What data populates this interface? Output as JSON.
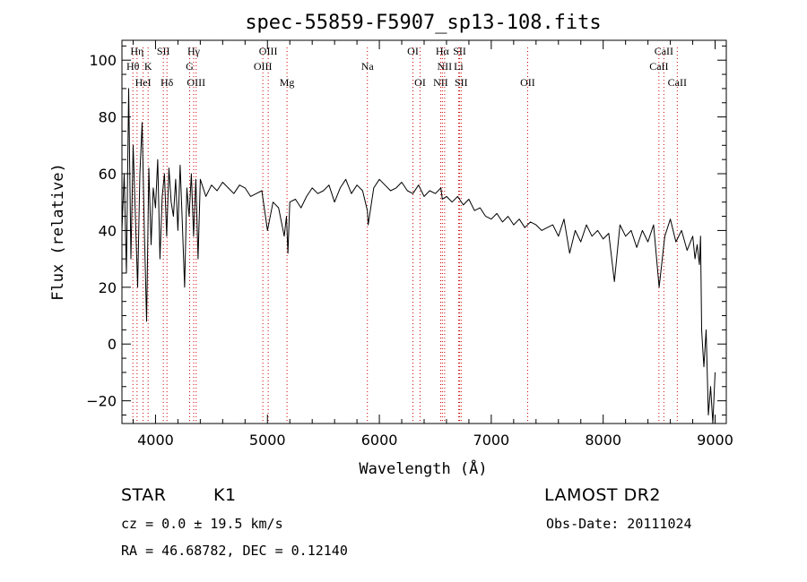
{
  "chart_data": {
    "type": "line",
    "title": "spec-55859-F5907_sp13-108.fits",
    "xlabel": "Wavelength (Å)",
    "ylabel": "Flux (relative)",
    "xlim": [
      3700,
      9100
    ],
    "ylim": [
      -28,
      107
    ],
    "x_ticks": [
      4000,
      5000,
      6000,
      7000,
      8000,
      9000
    ],
    "y_ticks": [
      -20,
      0,
      20,
      40,
      60,
      80,
      100
    ],
    "grid": false,
    "line_color": "#000000",
    "marker_color": "#cc0000",
    "series": [
      {
        "x": [
          3700,
          3720,
          3740,
          3760,
          3780,
          3800,
          3820,
          3840,
          3860,
          3880,
          3900,
          3920,
          3940,
          3960,
          3980,
          4000,
          4020,
          4040,
          4060,
          4080,
          4100,
          4120,
          4140,
          4160,
          4180,
          4200,
          4220,
          4240,
          4260,
          4280,
          4300,
          4320,
          4340,
          4360,
          4380,
          4400,
          4450,
          4500,
          4550,
          4600,
          4650,
          4700,
          4750,
          4800,
          4850,
          4900,
          4950,
          5000,
          5050,
          5100,
          5150,
          5170,
          5183,
          5200,
          5250,
          5300,
          5350,
          5400,
          5450,
          5500,
          5550,
          5600,
          5650,
          5700,
          5750,
          5800,
          5850,
          5893,
          5900,
          5950,
          6000,
          6050,
          6100,
          6150,
          6200,
          6250,
          6300,
          6350,
          6400,
          6450,
          6500,
          6550,
          6563,
          6600,
          6650,
          6700,
          6750,
          6800,
          6850,
          6900,
          6950,
          7000,
          7050,
          7100,
          7150,
          7200,
          7250,
          7300,
          7350,
          7400,
          7450,
          7500,
          7550,
          7600,
          7650,
          7700,
          7750,
          7800,
          7850,
          7900,
          7950,
          8000,
          8050,
          8100,
          8150,
          8200,
          8250,
          8300,
          8350,
          8400,
          8450,
          8500,
          8550,
          8600,
          8650,
          8700,
          8750,
          8800,
          8820,
          8840,
          8860,
          8870,
          8880,
          8890,
          8900,
          8920,
          8940,
          8960,
          8980,
          9000
        ],
        "y": [
          40,
          60,
          25,
          90,
          30,
          70,
          45,
          20,
          60,
          78,
          40,
          8,
          62,
          35,
          55,
          48,
          65,
          30,
          52,
          60,
          38,
          62,
          50,
          45,
          58,
          40,
          63,
          42,
          20,
          55,
          45,
          60,
          38,
          58,
          30,
          58,
          52,
          56,
          54,
          57,
          55,
          53,
          56,
          55,
          52,
          53,
          54,
          40,
          50,
          48,
          38,
          45,
          32,
          50,
          51,
          48,
          52,
          55,
          53,
          54,
          56,
          50,
          55,
          58,
          53,
          56,
          54,
          47,
          42,
          55,
          58,
          56,
          54,
          55,
          57,
          54,
          53,
          56,
          52,
          54,
          53,
          55,
          51,
          52,
          50,
          52,
          49,
          51,
          47,
          48,
          45,
          44,
          46,
          43,
          45,
          42,
          44,
          41,
          43,
          42,
          40,
          41,
          42,
          38,
          44,
          32,
          40,
          36,
          42,
          38,
          40,
          37,
          39,
          22,
          42,
          38,
          40,
          34,
          40,
          36,
          42,
          20,
          38,
          44,
          36,
          40,
          33,
          38,
          30,
          35,
          28,
          38,
          5,
          -2,
          -8,
          5,
          -25,
          -15,
          -28,
          -10
        ]
      }
    ],
    "spectral_lines": [
      {
        "label": "Hη",
        "x": 3835,
        "row": 0
      },
      {
        "label": "Hθ",
        "x": 3798,
        "row": 1
      },
      {
        "label": "K",
        "x": 3934,
        "row": 1
      },
      {
        "label": "HeI",
        "x": 3889,
        "row": 2
      },
      {
        "label": "SII",
        "x": 4070,
        "row": 0
      },
      {
        "label": "Hδ",
        "x": 4102,
        "row": 2
      },
      {
        "label": "Hγ",
        "x": 4341,
        "row": 0
      },
      {
        "label": "G",
        "x": 4305,
        "row": 1
      },
      {
        "label": "OIII",
        "x": 4363,
        "row": 2
      },
      {
        "label": "OIII",
        "x": 5007,
        "row": 0
      },
      {
        "label": "OIII",
        "x": 4959,
        "row": 1
      },
      {
        "label": "Mg",
        "x": 5175,
        "row": 2
      },
      {
        "label": "Na",
        "x": 5893,
        "row": 1
      },
      {
        "label": "OI",
        "x": 6300,
        "row": 0
      },
      {
        "label": "OI",
        "x": 6364,
        "row": 2
      },
      {
        "label": "Hα",
        "x": 6563,
        "row": 0
      },
      {
        "label": "SII",
        "x": 6717,
        "row": 0
      },
      {
        "label": "NII",
        "x": 6583,
        "row": 1
      },
      {
        "label": "Li",
        "x": 6708,
        "row": 1
      },
      {
        "label": "NII",
        "x": 6548,
        "row": 2
      },
      {
        "label": "SII",
        "x": 6731,
        "row": 2
      },
      {
        "label": "OII",
        "x": 7325,
        "row": 2
      },
      {
        "label": "CaII",
        "x": 8542,
        "row": 0
      },
      {
        "label": "CaII",
        "x": 8498,
        "row": 1
      },
      {
        "label": "CaII",
        "x": 8662,
        "row": 2
      }
    ]
  },
  "info": {
    "object_class": "STAR",
    "subclass": "K1",
    "survey": "LAMOST DR2",
    "redshift": "cz = 0.0 ± 19.5 km/s",
    "obs_date": "Obs-Date: 20111024",
    "coords": "RA =  46.68782, DEC =   0.12140"
  }
}
